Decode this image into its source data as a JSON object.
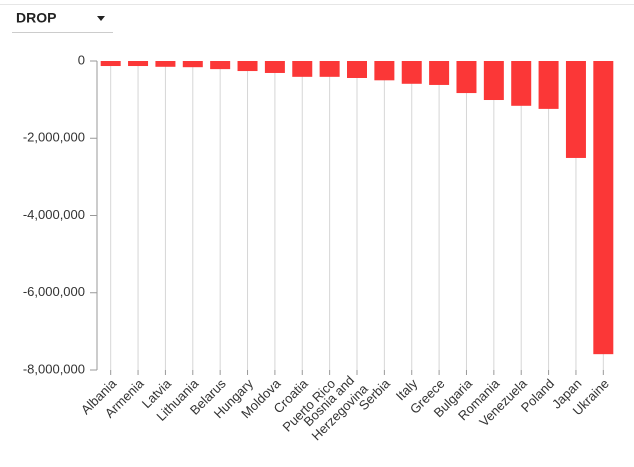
{
  "selector": {
    "label": "DROP"
  },
  "chart_data": {
    "type": "bar",
    "categories": [
      "Albania",
      "Armenia",
      "Latvia",
      "Lithuania",
      "Belarus",
      "Hungary",
      "Moldova",
      "Croatia",
      "Puerto Rico",
      "Bosnia and Herzegovina",
      "Serbia",
      "Italy",
      "Greece",
      "Bulgaria",
      "Romania",
      "Venezuela",
      "Poland",
      "Japan",
      "Ukraine"
    ],
    "values": [
      -130000,
      -130000,
      -150000,
      -160000,
      -210000,
      -260000,
      -310000,
      -410000,
      -410000,
      -440000,
      -500000,
      -590000,
      -620000,
      -830000,
      -1010000,
      -1160000,
      -1240000,
      -2510000,
      -7590000
    ],
    "color": "#fb3737",
    "ylim": [
      -8000000,
      0
    ],
    "yticks": [
      {
        "value": -8000000,
        "label": "-8,000,000"
      },
      {
        "value": -6000000,
        "label": "-6,000,000"
      },
      {
        "value": -4000000,
        "label": "-4,000,000"
      },
      {
        "value": -2000000,
        "label": "-2,000,000"
      },
      0
    ],
    "grid": true
  }
}
